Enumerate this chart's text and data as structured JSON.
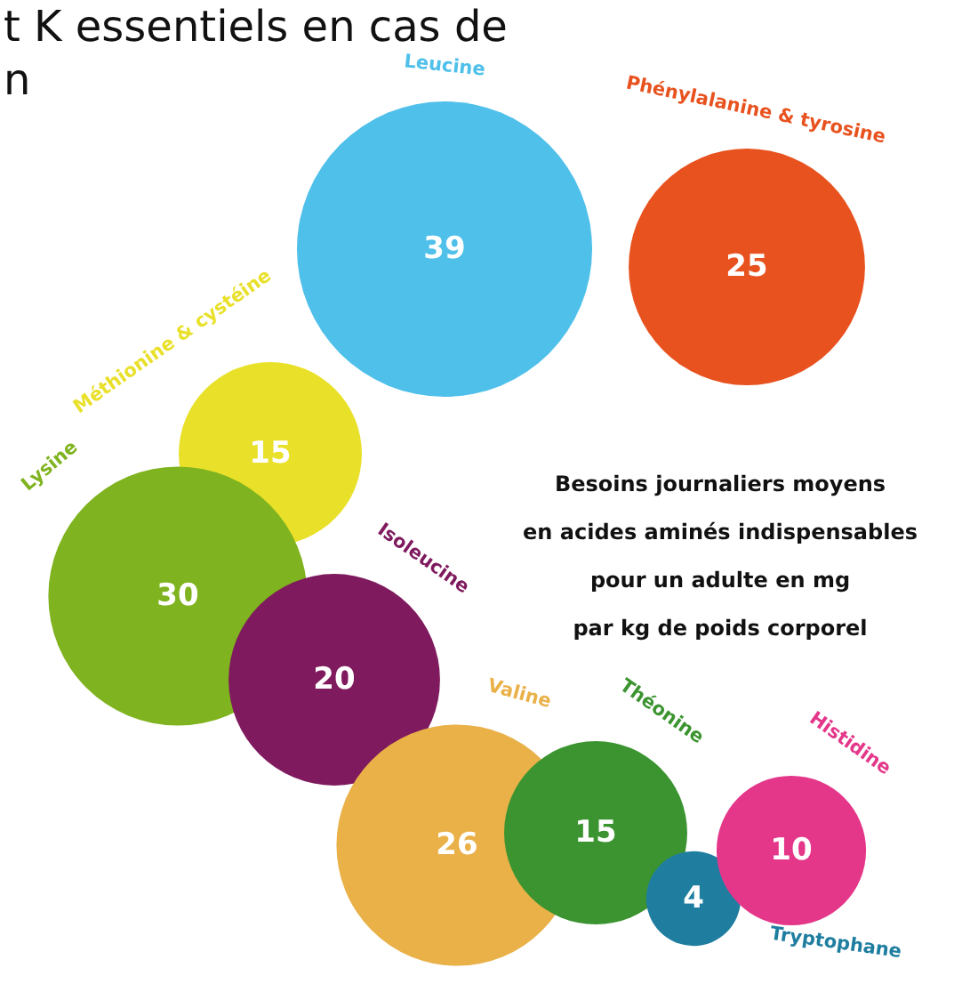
{
  "chart_data": {
    "type": "other",
    "title": "Besoins journaliers moyens\nen acides aminés indispensables\npour un adulte en mg\npar kg de poids corporel",
    "annotations": [
      "t K essentiels en cas de",
      "n"
    ],
    "categories": [
      "Leucine",
      "Phénylalanine & tyrosine",
      "Méthionine & cystéine",
      "Lysine",
      "Isoleucine",
      "Valine",
      "Théonine",
      "Tryptophane",
      "Histidine"
    ],
    "values": [
      39,
      25,
      15,
      30,
      20,
      26,
      15,
      4,
      10
    ],
    "colors": [
      "#4fc0ea",
      "#e8521f",
      "#e9e02a",
      "#7fb31f",
      "#7f1a5e",
      "#e9b148",
      "#3b9430",
      "#1f7ea0",
      "#e4378a"
    ],
    "data_labels": true
  }
}
